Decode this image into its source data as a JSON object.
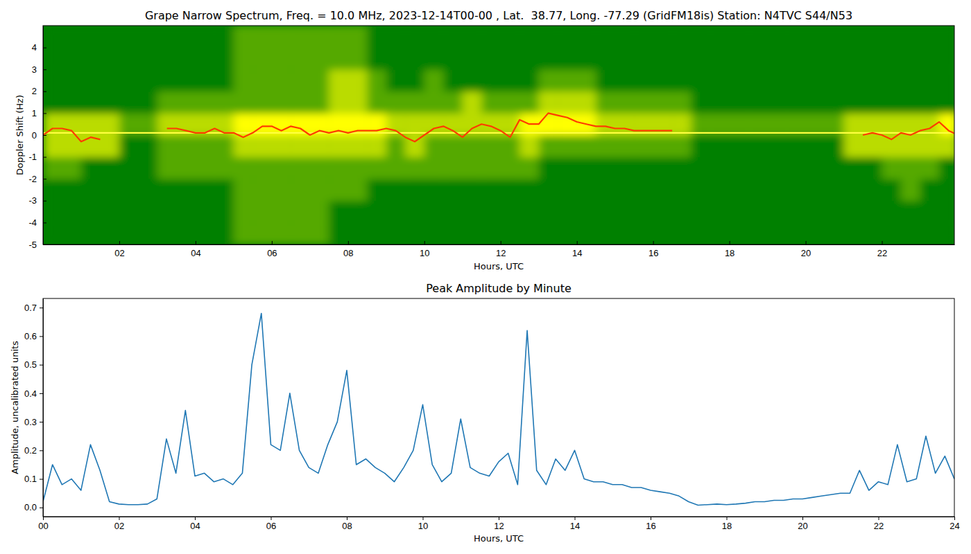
{
  "chart_data": [
    {
      "type": "heatmap",
      "title": "Grape Narrow Spectrum, Freq. = 10.0 MHz, 2023-12-14T00-00 , Lat.  38.77, Long. -77.29 (GridFM18is) Station: N4TVC S44/N53",
      "x_label": "Hours, UTC",
      "y_label": "Doppler Shift (Hz)",
      "xlim": [
        0,
        23.9
      ],
      "ylim": [
        -5,
        5
      ],
      "xticks": [
        {
          "value": 2,
          "label": "02"
        },
        {
          "value": 4,
          "label": "04"
        },
        {
          "value": 6,
          "label": "06"
        },
        {
          "value": 8,
          "label": "08"
        },
        {
          "value": 10,
          "label": "10"
        },
        {
          "value": 12,
          "label": "12"
        },
        {
          "value": 14,
          "label": "14"
        },
        {
          "value": 16,
          "label": "16"
        },
        {
          "value": 18,
          "label": "18"
        },
        {
          "value": 20,
          "label": "20"
        },
        {
          "value": 22,
          "label": "22"
        }
      ],
      "yticks": [
        -5,
        -4,
        -3,
        -2,
        -1,
        0,
        1,
        2,
        3,
        4
      ],
      "x_bins": [
        0,
        0.5,
        1,
        1.5,
        2,
        2.5,
        3,
        3.5,
        4,
        4.5,
        5,
        5.5,
        6,
        6.5,
        7,
        7.5,
        8,
        8.5,
        9,
        9.5,
        10,
        10.5,
        11,
        11.5,
        12,
        12.5,
        13,
        13.5,
        14,
        14.5,
        15,
        15.5,
        16,
        16.5,
        17,
        17.5,
        18,
        18.5,
        19,
        19.5,
        20,
        20.5,
        21,
        21.5,
        22,
        22.5,
        23,
        23.5,
        24
      ],
      "y_bins": [
        -5,
        -4,
        -3,
        -2,
        -1,
        0,
        1,
        2,
        3,
        4,
        5
      ],
      "z": [
        [
          0,
          0,
          0,
          0,
          0,
          0,
          0,
          0,
          0,
          0,
          1,
          1,
          1,
          1,
          1,
          0,
          0,
          0,
          0,
          0,
          0,
          0,
          0,
          0,
          0,
          0,
          0,
          0,
          0,
          0,
          0,
          0,
          0,
          0,
          0,
          0,
          0,
          0,
          0,
          0,
          0,
          0,
          0,
          0,
          0,
          0,
          0,
          0
        ],
        [
          0,
          0,
          0,
          0,
          0,
          0,
          0,
          0,
          0,
          0,
          1,
          1,
          1,
          1,
          1,
          0,
          0,
          0,
          0,
          0,
          0,
          0,
          0,
          0,
          0,
          0,
          0,
          0,
          0,
          0,
          0,
          0,
          0,
          0,
          0,
          0,
          0,
          0,
          0,
          0,
          0,
          0,
          0,
          0,
          0,
          0,
          0,
          0
        ],
        [
          0,
          0,
          0,
          0,
          0,
          0,
          0,
          0,
          0,
          0,
          1,
          1,
          1,
          1,
          1,
          1,
          1,
          0,
          0,
          0,
          0,
          0,
          0,
          0,
          0,
          0,
          0,
          0,
          0,
          0,
          0,
          0,
          0,
          0,
          0,
          0,
          0,
          0,
          0,
          0,
          0,
          0,
          0,
          0,
          0,
          1,
          0,
          0
        ],
        [
          1,
          1,
          0,
          0,
          0,
          0,
          1,
          1,
          1,
          1,
          1,
          1,
          1,
          1,
          1,
          1,
          1,
          1,
          1,
          1,
          1,
          1,
          1,
          1,
          1,
          1,
          0,
          0,
          0,
          0,
          0,
          0,
          0,
          0,
          0,
          0,
          0,
          0,
          0,
          0,
          0,
          0,
          0,
          0,
          1,
          1,
          1,
          0
        ],
        [
          2,
          2,
          2,
          2,
          0,
          0,
          1,
          1,
          1,
          1,
          2,
          2,
          2,
          2,
          2,
          2,
          2,
          2,
          1,
          2,
          1,
          1,
          1,
          1,
          1,
          2,
          1,
          1,
          1,
          1,
          1,
          1,
          1,
          1,
          0,
          0,
          0,
          0,
          0,
          0,
          0,
          0,
          2,
          2,
          2,
          2,
          2,
          2
        ],
        [
          2,
          2,
          2,
          2,
          1,
          1,
          2,
          2,
          2,
          2,
          3,
          3,
          3,
          3,
          3,
          3,
          3,
          3,
          2,
          2,
          2,
          2,
          2,
          2,
          2,
          3,
          3,
          3,
          3,
          2,
          2,
          2,
          2,
          2,
          1,
          1,
          1,
          1,
          1,
          1,
          1,
          1,
          2,
          2,
          2,
          2,
          2,
          3
        ],
        [
          0,
          0,
          0,
          0,
          0,
          0,
          1,
          1,
          1,
          1,
          1,
          1,
          1,
          1,
          1,
          2,
          2,
          1,
          1,
          1,
          1,
          1,
          2,
          1,
          1,
          1,
          2,
          2,
          2,
          1,
          1,
          1,
          1,
          1,
          0,
          0,
          0,
          0,
          0,
          0,
          0,
          0,
          0,
          0,
          0,
          0,
          0,
          0
        ],
        [
          0,
          0,
          0,
          0,
          0,
          0,
          0,
          0,
          0,
          0,
          1,
          1,
          1,
          1,
          1,
          2,
          2,
          1,
          0,
          0,
          1,
          0,
          0,
          0,
          0,
          0,
          1,
          1,
          1,
          0,
          0,
          0,
          0,
          0,
          0,
          0,
          0,
          0,
          0,
          0,
          0,
          0,
          0,
          0,
          0,
          0,
          0,
          0
        ],
        [
          0,
          0,
          0,
          0,
          0,
          0,
          0,
          0,
          0,
          0,
          1,
          1,
          1,
          1,
          1,
          1,
          1,
          0,
          0,
          0,
          0,
          0,
          0,
          0,
          0,
          0,
          0,
          0,
          0,
          0,
          0,
          0,
          0,
          0,
          0,
          0,
          0,
          0,
          0,
          0,
          0,
          0,
          0,
          0,
          0,
          0,
          0,
          0
        ],
        [
          0,
          0,
          0,
          0,
          0,
          0,
          0,
          0,
          0,
          0,
          1,
          1,
          1,
          1,
          1,
          1,
          1,
          0,
          0,
          0,
          0,
          0,
          0,
          0,
          0,
          0,
          0,
          0,
          0,
          0,
          0,
          0,
          0,
          0,
          0,
          0,
          0,
          0,
          0,
          0,
          0,
          0,
          0,
          0,
          0,
          0,
          0,
          0
        ]
      ],
      "series": [
        {
          "type": "line",
          "color": "#ffff40",
          "x": [
            0,
            23.9
          ],
          "values": [
            0.1,
            0.1
          ]
        },
        {
          "type": "line",
          "color": "#ff3c00",
          "x": [
            0,
            0.25,
            0.5,
            0.75,
            1,
            1.25,
            1.5,
            1.75,
            2,
            2.25,
            2.5,
            2.75,
            3,
            3.25,
            3.5,
            3.75,
            4,
            4.25,
            4.5,
            4.75,
            5,
            5.25,
            5.5,
            5.75,
            6,
            6.25,
            6.5,
            6.75,
            7,
            7.25,
            7.5,
            7.75,
            8,
            8.25,
            8.5,
            8.75,
            9,
            9.25,
            9.5,
            9.75,
            10,
            10.25,
            10.5,
            10.75,
            11,
            11.25,
            11.5,
            11.75,
            12,
            12.25,
            12.5,
            12.75,
            13,
            13.25,
            13.5,
            13.75,
            14,
            14.25,
            14.5,
            14.75,
            15,
            15.25,
            15.5,
            15.75,
            16,
            16.25,
            16.5,
            16.75,
            17,
            17.25,
            17.5,
            17.75,
            18,
            18.25,
            18.5,
            18.75,
            19,
            19.25,
            19.5,
            19.75,
            20,
            20.25,
            20.5,
            20.75,
            21,
            21.25,
            21.5,
            21.75,
            22,
            22.25,
            22.5,
            22.75,
            23,
            23.25,
            23.5,
            23.75,
            24
          ],
          "values": [
            0.0,
            0.3,
            0.3,
            0.2,
            -0.3,
            -0.1,
            -0.2,
            null,
            null,
            null,
            null,
            null,
            null,
            0.3,
            0.3,
            0.2,
            0.1,
            0.1,
            0.3,
            0.1,
            0.1,
            -0.1,
            0.1,
            0.4,
            0.4,
            0.2,
            0.4,
            0.3,
            0.0,
            0.2,
            0.1,
            0.2,
            0.1,
            0.2,
            0.2,
            0.2,
            0.3,
            0.2,
            -0.1,
            -0.3,
            0.0,
            0.3,
            0.4,
            0.2,
            -0.1,
            0.3,
            0.5,
            0.4,
            0.2,
            -0.1,
            0.7,
            0.5,
            0.5,
            1.0,
            0.9,
            0.8,
            0.6,
            0.5,
            0.4,
            0.4,
            0.3,
            0.3,
            0.2,
            0.2,
            0.2,
            0.2,
            0.2,
            null,
            null,
            null,
            null,
            null,
            null,
            null,
            null,
            null,
            null,
            null,
            null,
            null,
            null,
            null,
            null,
            null,
            null,
            null,
            0.0,
            0.1,
            0.0,
            -0.2,
            0.1,
            0.0,
            0.2,
            0.3,
            0.6,
            0.2,
            0.0
          ]
        }
      ]
    },
    {
      "type": "line",
      "title": "Peak Amplitude by Minute",
      "x_label": "Hours, UTC",
      "y_label": "Amplitude, uncalibrated units",
      "xlim": [
        0,
        24
      ],
      "ylim": [
        -0.032,
        0.732
      ],
      "xticks": [
        {
          "value": 0,
          "label": "00"
        },
        {
          "value": 2,
          "label": "02"
        },
        {
          "value": 4,
          "label": "04"
        },
        {
          "value": 6,
          "label": "06"
        },
        {
          "value": 8,
          "label": "08"
        },
        {
          "value": 10,
          "label": "10"
        },
        {
          "value": 12,
          "label": "12"
        },
        {
          "value": 14,
          "label": "14"
        },
        {
          "value": 16,
          "label": "16"
        },
        {
          "value": 18,
          "label": "18"
        },
        {
          "value": 20,
          "label": "20"
        },
        {
          "value": 22,
          "label": "22"
        },
        {
          "value": 24,
          "label": "24"
        }
      ],
      "yticks": [
        {
          "value": 0,
          "label": "0.0"
        },
        0.1,
        0.2,
        0.3,
        0.4,
        0.5,
        0.6,
        0.7
      ],
      "x": [
        0,
        0.25,
        0.5,
        0.75,
        1,
        1.25,
        1.5,
        1.75,
        2,
        2.25,
        2.5,
        2.75,
        3,
        3.25,
        3.5,
        3.75,
        4,
        4.25,
        4.5,
        4.75,
        5,
        5.25,
        5.5,
        5.75,
        6,
        6.25,
        6.5,
        6.75,
        7,
        7.25,
        7.5,
        7.75,
        8,
        8.25,
        8.5,
        8.75,
        9,
        9.25,
        9.5,
        9.75,
        10,
        10.25,
        10.5,
        10.75,
        11,
        11.25,
        11.5,
        11.75,
        12,
        12.25,
        12.5,
        12.75,
        13,
        13.25,
        13.5,
        13.75,
        14,
        14.25,
        14.5,
        14.75,
        15,
        15.25,
        15.5,
        15.75,
        16,
        16.25,
        16.5,
        16.75,
        17,
        17.25,
        17.5,
        17.75,
        18,
        18.25,
        18.5,
        18.75,
        19,
        19.25,
        19.5,
        19.75,
        20,
        20.25,
        20.5,
        20.75,
        21,
        21.25,
        21.5,
        21.75,
        22,
        22.25,
        22.5,
        22.75,
        23,
        23.25,
        23.5,
        23.75,
        24
      ],
      "series": [
        {
          "color": "#1f77b4",
          "values": [
            0.02,
            0.15,
            0.08,
            0.1,
            0.06,
            0.22,
            0.13,
            0.02,
            0.012,
            0.01,
            0.01,
            0.012,
            0.03,
            0.24,
            0.12,
            0.34,
            0.11,
            0.12,
            0.09,
            0.1,
            0.08,
            0.12,
            0.5,
            0.68,
            0.22,
            0.2,
            0.4,
            0.2,
            0.14,
            0.12,
            0.22,
            0.3,
            0.48,
            0.15,
            0.17,
            0.14,
            0.12,
            0.09,
            0.14,
            0.2,
            0.36,
            0.15,
            0.09,
            0.12,
            0.31,
            0.14,
            0.12,
            0.11,
            0.16,
            0.19,
            0.08,
            0.62,
            0.13,
            0.08,
            0.17,
            0.13,
            0.2,
            0.1,
            0.09,
            0.09,
            0.08,
            0.08,
            0.07,
            0.07,
            0.06,
            0.055,
            0.05,
            0.04,
            0.02,
            0.008,
            0.01,
            0.012,
            0.01,
            0.012,
            0.015,
            0.02,
            0.02,
            0.025,
            0.025,
            0.03,
            0.03,
            0.035,
            0.04,
            0.045,
            0.05,
            0.05,
            0.13,
            0.06,
            0.09,
            0.08,
            0.22,
            0.09,
            0.1,
            0.25,
            0.12,
            0.18,
            0.1
          ]
        }
      ]
    }
  ]
}
